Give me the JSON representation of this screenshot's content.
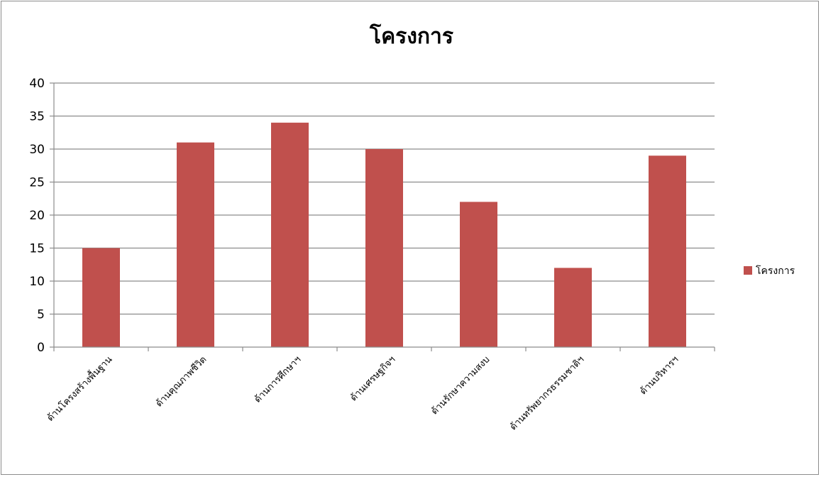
{
  "chart_data": {
    "type": "bar",
    "title": "โครงการ",
    "categories": [
      "ด้านโครงสร้างพื้นฐาน",
      "ด้านคุณภาพชีวิต",
      "ด้านการศึกษาฯ",
      "ด้านเศรษฐกิจฯ",
      "ด้านรักษาความสงบ",
      "ด้านทรัพยากรธรรมชาติฯ",
      "ด้านบริหารฯ"
    ],
    "series": [
      {
        "name": "โครงการ",
        "values": [
          15,
          31,
          34,
          30,
          22,
          12,
          29
        ],
        "color": "#c0504d"
      }
    ],
    "ylim": [
      0,
      40
    ],
    "yticks": [
      0,
      5,
      10,
      15,
      20,
      25,
      30,
      35,
      40
    ],
    "grid": true,
    "legend_position": "right"
  }
}
